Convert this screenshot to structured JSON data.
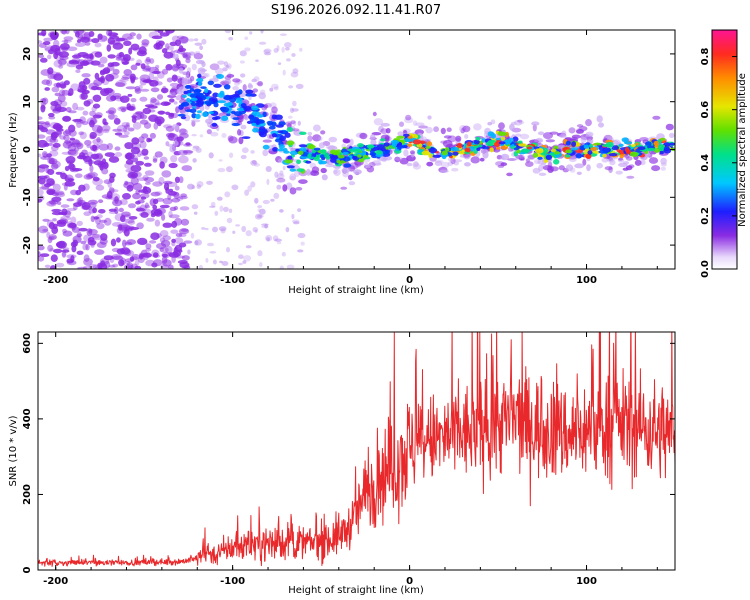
{
  "title": "S196.2026.092.11.41.R07",
  "chart_data": [
    {
      "type": "heatmap",
      "name": "spectrogram",
      "xlabel": "Height of straight line (km)",
      "ylabel": "Frequency (Hz)",
      "xlim": [
        -210,
        150
      ],
      "ylim": [
        -25,
        25
      ],
      "xticks": [
        -200,
        -100,
        0,
        100
      ],
      "yticks": [
        -20,
        -10,
        0,
        10,
        20
      ],
      "colorbar": {
        "label": "Normalized spectral amplitude",
        "range": [
          0,
          0.9
        ],
        "ticks": [
          0.0,
          0.2,
          0.4,
          0.6,
          0.8
        ]
      },
      "ridge_profile": {
        "x": [
          -210,
          -180,
          -150,
          -130,
          -120,
          -110,
          -100,
          -90,
          -80,
          -70,
          -60,
          -50,
          -40,
          -30,
          -20,
          -10,
          0,
          10,
          20,
          30,
          40,
          50,
          60,
          70,
          80,
          90,
          100,
          110,
          120,
          130,
          140,
          150
        ],
        "frequency": [
          0,
          0,
          0,
          10,
          11,
          10,
          9,
          8,
          5,
          1,
          -1,
          -1,
          -2,
          -1,
          0,
          1,
          2,
          0,
          -1,
          0,
          1,
          2,
          1,
          0,
          -1,
          0,
          0,
          0,
          0,
          0,
          1,
          0
        ]
      }
    },
    {
      "type": "line",
      "name": "snr",
      "xlabel": "Height of straight line (km)",
      "ylabel": "SNR (10 * v/v)",
      "xlim": [
        -210,
        150
      ],
      "ylim": [
        0,
        630
      ],
      "xticks": [
        -200,
        -100,
        0,
        100
      ],
      "yticks": [
        0,
        200,
        400,
        600
      ],
      "series": [
        {
          "name": "SNR",
          "color": "#e8282a",
          "x": [
            -210,
            -190,
            -170,
            -150,
            -130,
            -120,
            -115,
            -110,
            -100,
            -90,
            -80,
            -70,
            -60,
            -50,
            -40,
            -35,
            -30,
            -25,
            -20,
            -15,
            -10,
            -5,
            0,
            5,
            10,
            20,
            30,
            40,
            50,
            60,
            70,
            80,
            90,
            100,
            110,
            120,
            130,
            140,
            150
          ],
          "values": [
            20,
            20,
            20,
            20,
            22,
            30,
            50,
            40,
            60,
            70,
            70,
            75,
            70,
            75,
            90,
            110,
            150,
            200,
            230,
            260,
            270,
            300,
            320,
            330,
            340,
            350,
            360,
            370,
            390,
            400,
            380,
            370,
            360,
            370,
            380,
            390,
            380,
            370,
            360
          ]
        }
      ]
    }
  ]
}
